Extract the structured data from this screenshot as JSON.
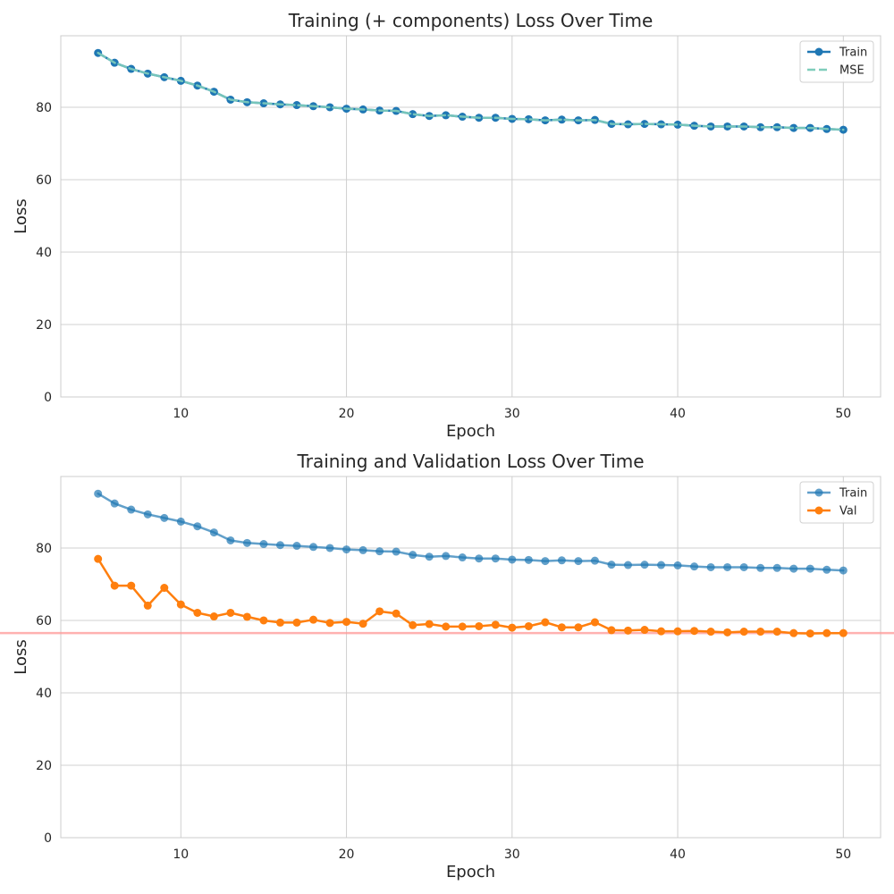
{
  "chart_data": [
    {
      "type": "line",
      "title": "Training (+ components) Loss Over Time",
      "xlabel": "Epoch",
      "ylabel": "Loss",
      "xlim": [
        2.75,
        52.25
      ],
      "ylim": [
        0,
        99.75
      ],
      "xticks": [
        10,
        20,
        30,
        40,
        50
      ],
      "yticks": [
        0,
        20,
        40,
        60,
        80
      ],
      "grid": true,
      "legend": "top-right",
      "x": [
        5,
        6,
        7,
        8,
        9,
        10,
        11,
        12,
        13,
        14,
        15,
        16,
        17,
        18,
        19,
        20,
        21,
        22,
        23,
        24,
        25,
        26,
        27,
        28,
        29,
        30,
        31,
        32,
        33,
        34,
        35,
        36,
        37,
        38,
        39,
        40,
        41,
        42,
        43,
        44,
        45,
        46,
        47,
        48,
        49,
        50
      ],
      "series": [
        {
          "name": "Train",
          "color": "#1f77b4",
          "style": "solid-markers",
          "values": [
            95.0,
            92.3,
            90.6,
            89.3,
            88.3,
            87.3,
            86.0,
            84.3,
            82.1,
            81.4,
            81.1,
            80.8,
            80.6,
            80.3,
            80.0,
            79.6,
            79.4,
            79.1,
            79.0,
            78.1,
            77.6,
            77.8,
            77.4,
            77.1,
            77.1,
            76.8,
            76.7,
            76.4,
            76.6,
            76.4,
            76.5,
            75.4,
            75.3,
            75.4,
            75.3,
            75.2,
            74.9,
            74.7,
            74.7,
            74.7,
            74.5,
            74.5,
            74.3,
            74.3,
            74.0,
            73.8
          ]
        },
        {
          "name": "MSE",
          "color": "#7fcdbb",
          "style": "dashed",
          "values": [
            95.0,
            92.3,
            90.6,
            89.3,
            88.3,
            87.3,
            86.0,
            84.3,
            82.1,
            81.4,
            81.1,
            80.8,
            80.6,
            80.3,
            80.0,
            79.6,
            79.4,
            79.1,
            79.0,
            78.1,
            77.6,
            77.8,
            77.4,
            77.1,
            77.1,
            76.8,
            76.7,
            76.4,
            76.6,
            76.4,
            76.5,
            75.4,
            75.3,
            75.4,
            75.3,
            75.2,
            74.9,
            74.7,
            74.7,
            74.7,
            74.5,
            74.5,
            74.3,
            74.3,
            74.0,
            73.8
          ]
        }
      ]
    },
    {
      "type": "line",
      "title": "Training and Validation Loss Over Time",
      "xlabel": "Epoch",
      "ylabel": "Loss",
      "xlim": [
        2.75,
        52.25
      ],
      "ylim": [
        0,
        99.75
      ],
      "xticks": [
        10,
        20,
        30,
        40,
        50
      ],
      "yticks": [
        0,
        20,
        40,
        60,
        80
      ],
      "grid": true,
      "legend": "top-right",
      "hline": {
        "y": 56.5,
        "color": "#ff9896"
      },
      "x": [
        5,
        6,
        7,
        8,
        9,
        10,
        11,
        12,
        13,
        14,
        15,
        16,
        17,
        18,
        19,
        20,
        21,
        22,
        23,
        24,
        25,
        26,
        27,
        28,
        29,
        30,
        31,
        32,
        33,
        34,
        35,
        36,
        37,
        38,
        39,
        40,
        41,
        42,
        43,
        44,
        45,
        46,
        47,
        48,
        49,
        50
      ],
      "series": [
        {
          "name": "Train",
          "color": "#1f77b4",
          "style": "faded-markers",
          "values": [
            95.0,
            92.3,
            90.6,
            89.3,
            88.3,
            87.3,
            86.0,
            84.3,
            82.1,
            81.4,
            81.1,
            80.8,
            80.6,
            80.3,
            80.0,
            79.6,
            79.4,
            79.1,
            79.0,
            78.1,
            77.6,
            77.8,
            77.4,
            77.1,
            77.1,
            76.8,
            76.7,
            76.4,
            76.6,
            76.4,
            76.5,
            75.4,
            75.3,
            75.4,
            75.3,
            75.2,
            74.9,
            74.7,
            74.7,
            74.7,
            74.5,
            74.5,
            74.3,
            74.3,
            74.0,
            73.8
          ]
        },
        {
          "name": "Val",
          "color": "#ff7f0e",
          "style": "solid-markers",
          "values": [
            77.0,
            69.6,
            69.6,
            64.1,
            69.0,
            64.4,
            62.1,
            61.1,
            62.1,
            61.0,
            60.0,
            59.4,
            59.4,
            60.2,
            59.3,
            59.6,
            59.1,
            62.5,
            61.9,
            58.7,
            59.0,
            58.3,
            58.3,
            58.4,
            58.8,
            58.0,
            58.4,
            59.5,
            58.1,
            58.1,
            59.5,
            57.3,
            57.2,
            57.4,
            57.0,
            57.0,
            57.1,
            56.9,
            56.7,
            56.9,
            56.9,
            56.9,
            56.5,
            56.4,
            56.5,
            56.5
          ]
        }
      ]
    }
  ]
}
